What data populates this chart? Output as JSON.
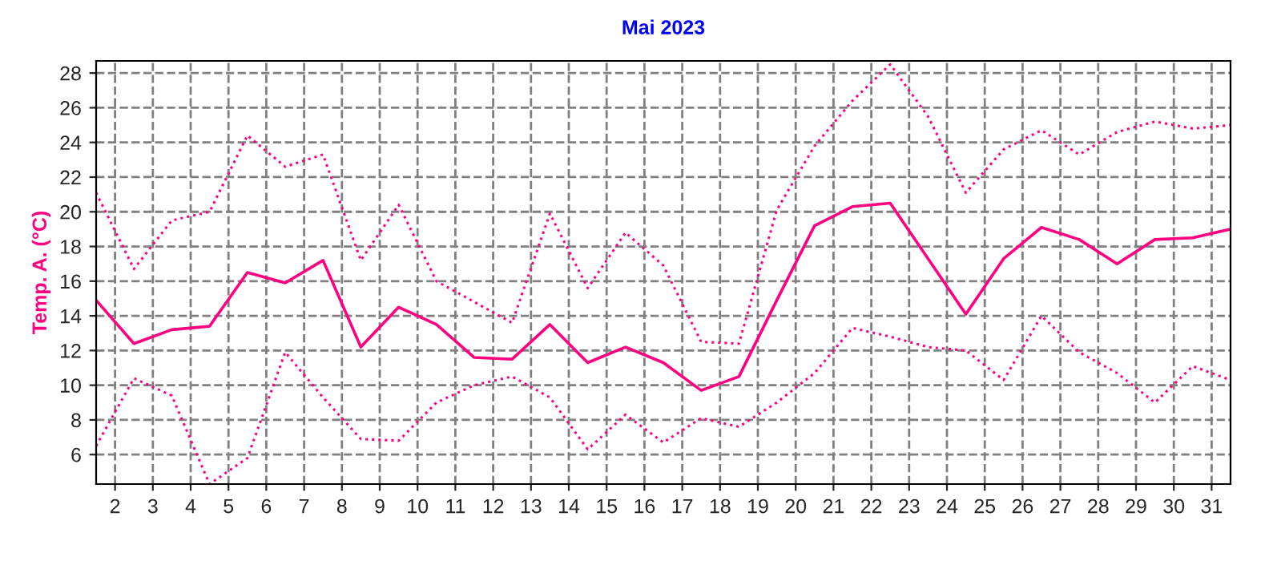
{
  "chart_data": {
    "type": "line",
    "title": "Mai 2023",
    "ylabel": "Temp. A. (°C)",
    "x": [
      1.5,
      2.5,
      3.5,
      4.5,
      5.5,
      6.5,
      7.5,
      8.5,
      9.5,
      10.5,
      11.5,
      12.5,
      13.5,
      14.5,
      15.5,
      16.5,
      17.5,
      18.5,
      19.5,
      20.5,
      21.5,
      22.5,
      23.5,
      24.5,
      25.5,
      26.5,
      27.5,
      28.5,
      29.5,
      30.5,
      31.5
    ],
    "series": [
      {
        "color": "#ff0080",
        "line_style": "dotted",
        "values": [
          21.1,
          16.7,
          19.5,
          20.0,
          24.4,
          22.6,
          23.3,
          17.2,
          20.4,
          16.0,
          14.8,
          13.6,
          19.9,
          15.6,
          18.8,
          16.9,
          12.5,
          12.4,
          20.1,
          23.8,
          26.4,
          28.5,
          25.5,
          21.1,
          23.6,
          24.7,
          23.3,
          24.6,
          25.2,
          24.8,
          25.0
        ]
      },
      {
        "color": "#ff0080",
        "line_style": "solid",
        "values": [
          14.9,
          12.4,
          13.2,
          13.4,
          16.5,
          15.9,
          17.2,
          12.2,
          14.5,
          13.5,
          11.6,
          11.5,
          13.5,
          11.3,
          12.2,
          11.3,
          9.7,
          10.5,
          14.9,
          19.2,
          20.3,
          20.5,
          17.3,
          14.1,
          17.3,
          19.1,
          18.4,
          17.0,
          18.4,
          18.5,
          19.0
        ]
      },
      {
        "color": "#ff0080",
        "line_style": "dotted",
        "values": [
          6.5,
          10.4,
          9.4,
          4.3,
          5.8,
          11.9,
          9.3,
          6.9,
          6.8,
          9.0,
          10.0,
          10.5,
          9.3,
          6.3,
          8.3,
          6.7,
          8.1,
          7.6,
          9.0,
          10.7,
          13.3,
          12.8,
          12.2,
          12.0,
          10.3,
          14.0,
          11.9,
          10.7,
          9.0,
          11.1,
          10.3
        ]
      }
    ],
    "xlim": [
      1.5,
      31.5
    ],
    "xticks": [
      2,
      3,
      4,
      5,
      6,
      7,
      8,
      9,
      10,
      11,
      12,
      13,
      14,
      15,
      16,
      17,
      18,
      19,
      20,
      21,
      22,
      23,
      24,
      25,
      26,
      27,
      28,
      29,
      30,
      31
    ],
    "ylim": [
      4.3,
      28.7
    ],
    "yticks": [
      6,
      8,
      10,
      12,
      14,
      16,
      18,
      20,
      22,
      24,
      26,
      28
    ],
    "grid": true,
    "marker": "none"
  }
}
